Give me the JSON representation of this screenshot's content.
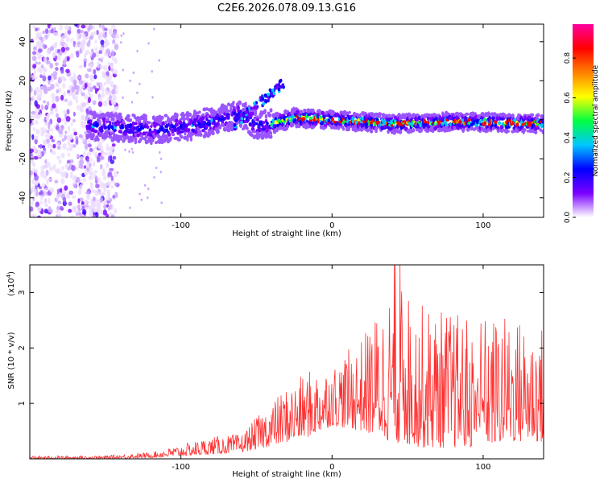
{
  "chart_data": [
    {
      "type": "heatmap",
      "title": "C2E6.2026.078.09.13.G16",
      "xlabel": "Height of straight line (km)",
      "ylabel": "Frequency (Hz)",
      "xlim": [
        -200,
        140
      ],
      "ylim": [
        -50,
        49
      ],
      "xticks": [
        -100,
        0,
        100
      ],
      "yticks": [
        -40,
        -20,
        0,
        20,
        40
      ],
      "colorbar": {
        "label": "Normalized spectral amplitude",
        "range": [
          0,
          0.97
        ],
        "ticks": [
          "0.0",
          "0.2",
          "0.4",
          "0.6",
          "0.8"
        ],
        "colors": [
          "#ffffff",
          "#7a00ff",
          "#0000ff",
          "#00c8ff",
          "#00ff40",
          "#ffff00",
          "#ff8000",
          "#ff0000",
          "#ff00a0"
        ]
      },
      "ridge": [
        {
          "x": -160,
          "y": -3
        },
        {
          "x": -120,
          "y": -5
        },
        {
          "x": -100,
          "y": -4
        },
        {
          "x": -80,
          "y": -1
        },
        {
          "x": -60,
          "y": 3
        },
        {
          "x": -50,
          "y": -3
        },
        {
          "x": -40,
          "y": -2
        },
        {
          "x": -25,
          "y": 1
        },
        {
          "x": 0,
          "y": 0
        },
        {
          "x": 40,
          "y": -2
        },
        {
          "x": 80,
          "y": -1
        },
        {
          "x": 140,
          "y": -2
        }
      ]
    },
    {
      "type": "line",
      "xlabel": "Height of straight line (km)",
      "ylabel": "SNR (10 * v/v)",
      "yscale_label": "(x10",
      "yscale_exp": "4",
      "ylabel_suffix": ")",
      "xlim": [
        -200,
        140
      ],
      "ylim": [
        0,
        3.5
      ],
      "xticks": [
        -100,
        0,
        100
      ],
      "yticks": [
        1,
        2,
        3
      ],
      "color": "#ff3030",
      "envelope": [
        {
          "x": -200,
          "low": 0.0,
          "high": 0.05
        },
        {
          "x": -150,
          "low": 0.0,
          "high": 0.06
        },
        {
          "x": -120,
          "low": 0.02,
          "high": 0.12
        },
        {
          "x": -100,
          "low": 0.05,
          "high": 0.25
        },
        {
          "x": -80,
          "low": 0.08,
          "high": 0.4
        },
        {
          "x": -60,
          "low": 0.12,
          "high": 0.45
        },
        {
          "x": -45,
          "low": 0.2,
          "high": 0.9
        },
        {
          "x": -30,
          "low": 0.3,
          "high": 1.3
        },
        {
          "x": -15,
          "low": 0.4,
          "high": 1.6
        },
        {
          "x": 0,
          "low": 0.6,
          "high": 1.7
        },
        {
          "x": 20,
          "low": 0.5,
          "high": 2.2
        },
        {
          "x": 40,
          "low": 0.3,
          "high": 3.2
        },
        {
          "x": 60,
          "low": 0.2,
          "high": 2.8
        },
        {
          "x": 90,
          "low": 0.2,
          "high": 2.6
        },
        {
          "x": 120,
          "low": 0.3,
          "high": 2.6
        },
        {
          "x": 140,
          "low": 0.3,
          "high": 2.4
        }
      ]
    }
  ]
}
